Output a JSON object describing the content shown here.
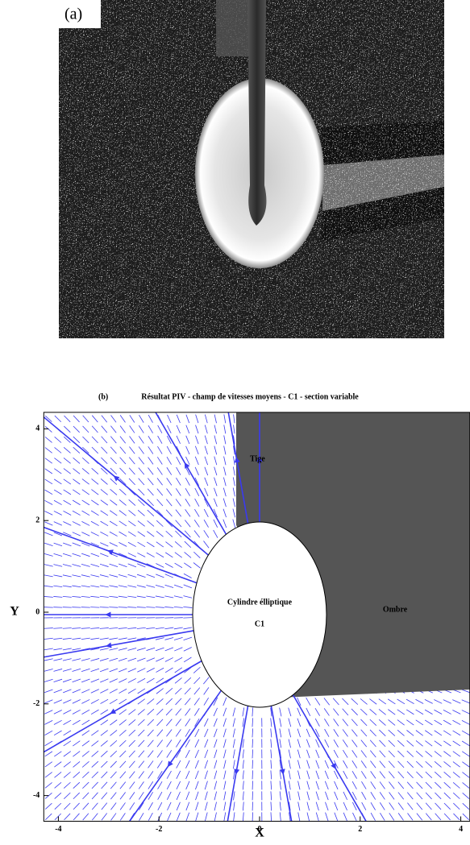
{
  "panel_a": {
    "label": "(a)"
  },
  "chart_data": {
    "type": "quiver",
    "panel_label": "(b)",
    "title": "Résultat PIV - champ de vitesses moyens - C1 - section variable",
    "x_label": "X",
    "y_label": "Y",
    "xlim": [
      -4.29,
      4.18
    ],
    "ylim": [
      -4.56,
      4.36
    ],
    "xticks": [
      -4,
      -2,
      0,
      2,
      4
    ],
    "yticks": [
      -4,
      -2,
      0,
      2,
      4
    ],
    "color": "#3a3af0",
    "annotations": [
      "Tige",
      "Cylindre élliptique",
      "C1",
      "Ombre"
    ]
  }
}
